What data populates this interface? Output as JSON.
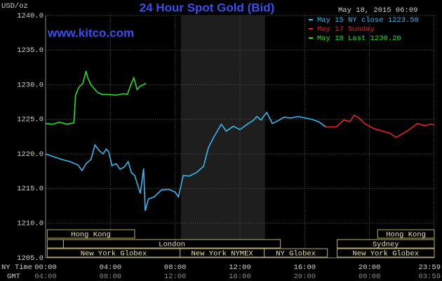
{
  "chart_data": {
    "type": "line",
    "title": "24 Hour Spot Gold (Bid)",
    "timestamp": "May 18, 2015 06:09",
    "watermark": "www.kitco.com",
    "y_label": "USD/oz",
    "x_row_labels": [
      "NY Time",
      "GMT"
    ],
    "xlim": [
      0,
      24
    ],
    "ylim": [
      1205,
      1240
    ],
    "xticks": [
      {
        "value": 0,
        "label": "00:00"
      },
      {
        "value": 4,
        "label": "04:00"
      },
      {
        "value": 8,
        "label": "08:00"
      },
      {
        "value": 12,
        "label": "12:00"
      },
      {
        "value": 16,
        "label": "16:00"
      },
      {
        "value": 20,
        "label": "20:00"
      },
      {
        "value": 23.98,
        "label": "23:59"
      }
    ],
    "gmt_tick_labels": [
      "04:00",
      "08:00",
      "12:00",
      "16:00",
      "20:00",
      "00:00",
      "03:59"
    ],
    "yticks": [
      {
        "value": 1205,
        "label": "1205.0"
      },
      {
        "value": 1210,
        "label": "1210.0"
      },
      {
        "value": 1215,
        "label": "1215.0"
      },
      {
        "value": 1220,
        "label": "1220.0"
      },
      {
        "value": 1225,
        "label": "1225.0"
      },
      {
        "value": 1230,
        "label": "1230.0"
      },
      {
        "value": 1235,
        "label": "1235.0"
      },
      {
        "value": 1240,
        "label": "1240.0"
      }
    ],
    "grid": true,
    "shade": [
      8.35,
      13.55
    ],
    "sessions": [
      [
        {
          "label": "Hong Kong",
          "start": 0.1,
          "end": 5.5
        },
        {
          "label": "Hong Kong",
          "start": 20.5,
          "end": 24
        }
      ],
      [
        {
          "label": null,
          "start": 0.1,
          "end": 1.1
        },
        {
          "label": "London",
          "start": 1.1,
          "end": 14.5
        },
        {
          "label": "Sydney",
          "start": 18,
          "end": 24
        }
      ],
      [
        {
          "label": "New York Globex",
          "start": 0.1,
          "end": 8.3
        },
        {
          "label": "New York NYMEX",
          "start": 8.3,
          "end": 13.5
        },
        {
          "label": "NY Globex",
          "start": 13.5,
          "end": 17.4
        },
        {
          "label": "New York Globex",
          "start": 18,
          "end": 24
        }
      ]
    ],
    "series": [
      {
        "name": "May 15 NY close 1223.50",
        "color": "#38b8ee",
        "x": [
          0,
          0.5,
          1.0,
          1.5,
          2.0,
          2.25,
          2.5,
          2.8,
          3.05,
          3.3,
          3.55,
          3.75,
          3.9,
          4.1,
          4.35,
          4.6,
          4.85,
          5.1,
          5.3,
          5.5,
          5.85,
          6.05,
          6.15,
          6.35,
          6.7,
          7.15,
          7.6,
          8.0,
          8.2,
          8.5,
          8.85,
          9.3,
          9.75,
          10.05,
          10.4,
          10.85,
          11.15,
          11.6,
          12.0,
          12.45,
          12.8,
          13.05,
          13.3,
          13.65,
          14.0,
          14.35,
          14.7,
          15.15,
          15.6,
          16.0,
          16.45,
          16.9,
          17.3
        ],
        "values": [
          1220.0,
          1219.6,
          1219.2,
          1218.9,
          1218.4,
          1217.6,
          1218.6,
          1219.2,
          1221.3,
          1220.5,
          1220.0,
          1220.7,
          1220.3,
          1218.3,
          1218.6,
          1217.8,
          1218.1,
          1218.9,
          1217.3,
          1216.9,
          1214.3,
          1217.9,
          1211.8,
          1213.5,
          1213.8,
          1214.8,
          1214.9,
          1214.5,
          1213.8,
          1216.9,
          1216.8,
          1217.3,
          1218.2,
          1220.9,
          1222.5,
          1224.3,
          1223.3,
          1224.0,
          1223.5,
          1224.3,
          1224.8,
          1225.4,
          1224.9,
          1226.0,
          1224.4,
          1224.8,
          1225.3,
          1225.2,
          1225.4,
          1225.2,
          1225.0,
          1224.6,
          1223.9
        ]
      },
      {
        "name": "May 17 Sunday",
        "color": "#e8202a",
        "x": [
          17.3,
          17.95,
          18.4,
          18.8,
          19.05,
          19.35,
          19.7,
          20.0,
          20.35,
          20.8,
          21.25,
          21.65,
          22.1,
          22.5,
          22.95,
          23.4,
          23.8,
          24.0
        ],
        "values": [
          1223.9,
          1223.9,
          1224.9,
          1224.7,
          1225.6,
          1225.2,
          1224.4,
          1224.0,
          1223.6,
          1223.3,
          1223.0,
          1222.4,
          1223.0,
          1223.6,
          1224.4,
          1224.1,
          1224.3,
          1224.2
        ]
      },
      {
        "name": "May 18 Last 1230.20",
        "color": "#22e022",
        "x": [
          0,
          0.45,
          0.85,
          1.3,
          1.75,
          1.85,
          2.05,
          2.3,
          2.5,
          2.6,
          2.8,
          3.2,
          3.5,
          3.9,
          4.35,
          4.8,
          5.05,
          5.3,
          5.45,
          5.65,
          5.85,
          6.2
        ],
        "values": [
          1224.4,
          1224.3,
          1224.6,
          1224.3,
          1224.5,
          1228.5,
          1229.6,
          1230.2,
          1232.0,
          1231.0,
          1230.0,
          1228.9,
          1228.6,
          1228.6,
          1228.5,
          1228.7,
          1228.6,
          1230.2,
          1231.0,
          1229.3,
          1229.8,
          1230.2
        ]
      }
    ]
  }
}
